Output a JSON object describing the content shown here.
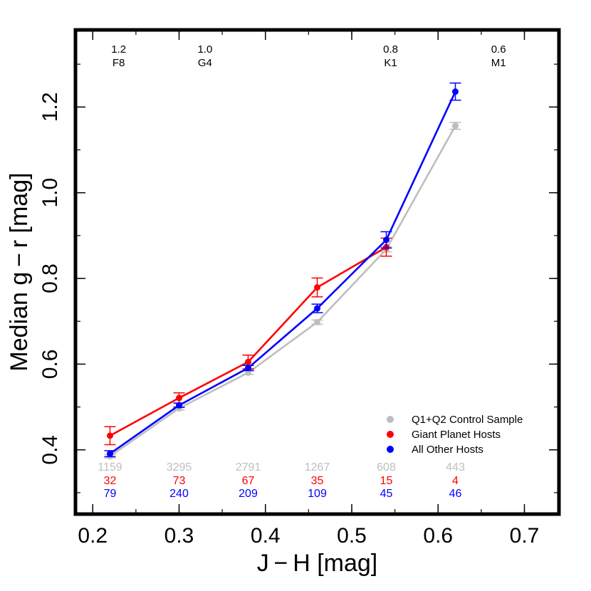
{
  "chart_data": {
    "type": "line",
    "xlabel": "J − H  [mag]",
    "ylabel": "Median g − r  [mag]",
    "xlim": [
      0.18,
      0.74
    ],
    "ylim": [
      0.25,
      1.38
    ],
    "xticks": [
      0.2,
      0.3,
      0.4,
      0.5,
      0.6,
      0.7
    ],
    "xtick_labels": [
      "0.2",
      "0.3",
      "0.4",
      "0.5",
      "0.6",
      "0.7"
    ],
    "yticks": [
      0.4,
      0.6,
      0.8,
      1.0,
      1.2
    ],
    "ytick_labels": [
      "0.4",
      "0.6",
      "0.8",
      "1.0",
      "1.2"
    ],
    "grid": false,
    "legend_position": "bottom-right",
    "top_annotations": [
      {
        "x": 0.23,
        "mass": "1.2",
        "spectral_type": "F8"
      },
      {
        "x": 0.33,
        "mass": "1.0",
        "spectral_type": "G4"
      },
      {
        "x": 0.545,
        "mass": "0.8",
        "spectral_type": "K1"
      },
      {
        "x": 0.67,
        "mass": "0.6",
        "spectral_type": "M1"
      }
    ],
    "x": [
      0.22,
      0.3,
      0.38,
      0.46,
      0.54,
      0.62
    ],
    "series": [
      {
        "name": "Q1+Q2 Control Sample",
        "color": "#bebebe",
        "values": [
          0.385,
          0.497,
          0.58,
          0.698,
          0.868,
          1.156
        ],
        "errors": [
          0.004,
          0.004,
          0.004,
          0.005,
          0.006,
          0.008
        ],
        "counts": [
          "1159",
          "3295",
          "2791",
          "1267",
          "608",
          "443"
        ]
      },
      {
        "name": "Giant Planet Hosts",
        "color": "#ff0000",
        "values": [
          0.433,
          0.521,
          0.605,
          0.779,
          0.873,
          null
        ],
        "errors": [
          0.021,
          0.012,
          0.016,
          0.022,
          0.021,
          null
        ],
        "counts": [
          "32",
          "73",
          "67",
          "35",
          "15",
          "4"
        ]
      },
      {
        "name": "All Other Hosts",
        "color": "#0000ff",
        "values": [
          0.391,
          0.504,
          0.591,
          0.73,
          0.89,
          1.236
        ],
        "errors": [
          0.007,
          0.005,
          0.006,
          0.01,
          0.019,
          0.02
        ],
        "counts": [
          "79",
          "240",
          "209",
          "109",
          "45",
          "46"
        ]
      }
    ]
  }
}
